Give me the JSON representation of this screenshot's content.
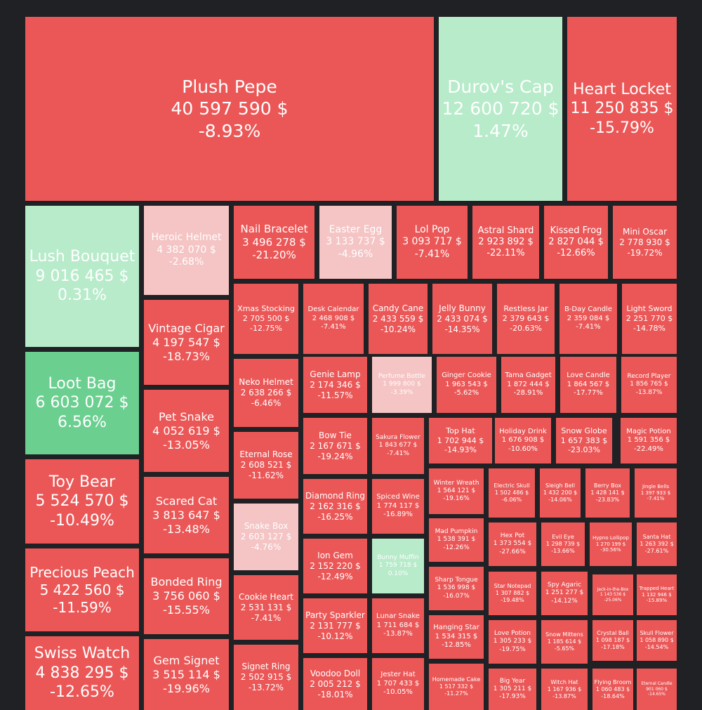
{
  "chart_data": {
    "type": "treemap",
    "colors": {
      "background": "#1f2124",
      "strong_negative": "#eb5757",
      "mild_negative": "#f5c4c4",
      "mild_positive": "#b7ebca",
      "strong_positive": "#6acf8f",
      "text_on_red": "#ffffff"
    },
    "items": [
      {
        "name": "Plush Pepe",
        "value": "40 597 590 $",
        "change": "-8.93%",
        "change_num": -8.93
      },
      {
        "name": "Durov's Cap",
        "value": "12 600 720 $",
        "change": "1.47%",
        "change_num": 1.47
      },
      {
        "name": "Heart Locket",
        "value": "11 250 835 $",
        "change": "-15.79%",
        "change_num": -15.79
      },
      {
        "name": "Lush Bouquet",
        "value": "9 016 465 $",
        "change": "0.31%",
        "change_num": 0.31
      },
      {
        "name": "Heroic Helmet",
        "value": "4 382 070 $",
        "change": "-2.68%",
        "change_num": -2.68
      },
      {
        "name": "Nail Bracelet",
        "value": "3 496 278 $",
        "change": "-21.20%",
        "change_num": -21.2
      },
      {
        "name": "Easter Egg",
        "value": "3 133 737 $",
        "change": "-4.96%",
        "change_num": -4.96
      },
      {
        "name": "Lol Pop",
        "value": "3 093 717 $",
        "change": "-7.41%",
        "change_num": -7.41
      },
      {
        "name": "Astral Shard",
        "value": "2 923 892 $",
        "change": "-22.11%",
        "change_num": -22.11
      },
      {
        "name": "Kissed Frog",
        "value": "2 827 044 $",
        "change": "-12.66%",
        "change_num": -12.66
      },
      {
        "name": "Mini Oscar",
        "value": "2 778 930 $",
        "change": "-19.72%",
        "change_num": -19.72
      },
      {
        "name": "Loot Bag",
        "value": "6 603 072 $",
        "change": "6.56%",
        "change_num": 6.56
      },
      {
        "name": "Vintage Cigar",
        "value": "4 197 547 $",
        "change": "-18.73%",
        "change_num": -18.73
      },
      {
        "name": "Xmas Stocking",
        "value": "2 705 500 $",
        "change": "-12.75%",
        "change_num": -12.75
      },
      {
        "name": "Desk Calendar",
        "value": "2 468 908 $",
        "change": "-7.41%",
        "change_num": -7.41
      },
      {
        "name": "Candy Cane",
        "value": "2 433 559 $",
        "change": "-10.24%",
        "change_num": -10.24
      },
      {
        "name": "Jelly Bunny",
        "value": "2 433 074 $",
        "change": "-14.35%",
        "change_num": -14.35
      },
      {
        "name": "Restless Jar",
        "value": "2 379 643 $",
        "change": "-20.63%",
        "change_num": -20.63
      },
      {
        "name": "B-Day Candle",
        "value": "2 359 084 $",
        "change": "-7.41%",
        "change_num": -7.41
      },
      {
        "name": "Light Sword",
        "value": "2 251 770 $",
        "change": "-14.78%",
        "change_num": -14.78
      },
      {
        "name": "Neko Helmet",
        "value": "2 638 266 $",
        "change": "-6.46%",
        "change_num": -6.46
      },
      {
        "name": "Genie Lamp",
        "value": "2 174 346 $",
        "change": "-11.57%",
        "change_num": -11.57
      },
      {
        "name": "Perfume Bottle",
        "value": "1 999 800 $",
        "change": "-3.39%",
        "change_num": -3.39
      },
      {
        "name": "Ginger Cookie",
        "value": "1 963 543 $",
        "change": "-5.62%",
        "change_num": -5.62
      },
      {
        "name": "Tama Gadget",
        "value": "1 872 444 $",
        "change": "-28.91%",
        "change_num": -28.91
      },
      {
        "name": "Love Candle",
        "value": "1 864 567 $",
        "change": "-17.77%",
        "change_num": -17.77
      },
      {
        "name": "Record Player",
        "value": "1 856 765 $",
        "change": "-13.87%",
        "change_num": -13.87
      },
      {
        "name": "Pet Snake",
        "value": "4 052 619 $",
        "change": "-13.05%",
        "change_num": -13.05
      },
      {
        "name": "Eternal Rose",
        "value": "2 608 521 $",
        "change": "-11.62%",
        "change_num": -11.62
      },
      {
        "name": "Bow Tie",
        "value": "2 167 671 $",
        "change": "-19.24%",
        "change_num": -19.24
      },
      {
        "name": "Sakura Flower",
        "value": "1 843 677 $",
        "change": "-7.41%",
        "change_num": -7.41
      },
      {
        "name": "Top Hat",
        "value": "1 702 944 $",
        "change": "-14.93%",
        "change_num": -14.93
      },
      {
        "name": "Holiday Drink",
        "value": "1 676 908 $",
        "change": "-10.60%",
        "change_num": -10.6
      },
      {
        "name": "Snow Globe",
        "value": "1 657 383 $",
        "change": "-23.03%",
        "change_num": -23.03
      },
      {
        "name": "Magic Potion",
        "value": "1 591 356 $",
        "change": "-22.49%",
        "change_num": -22.49
      },
      {
        "name": "Toy Bear",
        "value": "5 524 570 $",
        "change": "-10.49%",
        "change_num": -10.49
      },
      {
        "name": "Winter Wreath",
        "value": "1 564 121 $",
        "change": "-19.16%",
        "change_num": -19.16
      },
      {
        "name": "Electric Skull",
        "value": "1 502 486 $",
        "change": "-6.06%",
        "change_num": -6.06
      },
      {
        "name": "Sleigh Bell",
        "value": "1 432 200 $",
        "change": "-14.06%",
        "change_num": -14.06
      },
      {
        "name": "Berry Box",
        "value": "1 428 141 $",
        "change": "-23.83%",
        "change_num": -23.83
      },
      {
        "name": "Jingle Bells",
        "value": "1 397 933 $",
        "change": "-7.41%",
        "change_num": -7.41
      },
      {
        "name": "Scared Cat",
        "value": "3 813 647 $",
        "change": "-13.48%",
        "change_num": -13.48
      },
      {
        "name": "Diamond Ring",
        "value": "2 162 316 $",
        "change": "-16.25%",
        "change_num": -16.25
      },
      {
        "name": "Spiced Wine",
        "value": "1 774 117 $",
        "change": "-16.89%",
        "change_num": -16.89
      },
      {
        "name": "Snake Box",
        "value": "2 603 127 $",
        "change": "-4.76%",
        "change_num": -4.76
      },
      {
        "name": "Mad Pumpkin",
        "value": "1 538 391 $",
        "change": "-12.26%",
        "change_num": -12.26
      },
      {
        "name": "Hex Pot",
        "value": "1 373 554 $",
        "change": "-27.66%",
        "change_num": -27.66
      },
      {
        "name": "Evil Eye",
        "value": "1 298 739 $",
        "change": "-13.66%",
        "change_num": -13.66
      },
      {
        "name": "Hypno Lollipop",
        "value": "1 270 199 $",
        "change": "-30.56%",
        "change_num": -30.56
      },
      {
        "name": "Santa Hat",
        "value": "1 263 392 $",
        "change": "-27.61%",
        "change_num": -27.61
      },
      {
        "name": "Precious Peach",
        "value": "5 422 560 $",
        "change": "-11.59%",
        "change_num": -11.59
      },
      {
        "name": "Ion Gem",
        "value": "2 152 220 $",
        "change": "-12.49%",
        "change_num": -12.49
      },
      {
        "name": "Bunny Muffin",
        "value": "1 759 718 $",
        "change": "0.10%",
        "change_num": 0.1
      },
      {
        "name": "Sharp Tongue",
        "value": "1 536 998 $",
        "change": "-16.07%",
        "change_num": -16.07
      },
      {
        "name": "Star Notepad",
        "value": "1 307 882 $",
        "change": "-19.48%",
        "change_num": -19.48
      },
      {
        "name": "Spy Agaric",
        "value": "1 251 277 $",
        "change": "-14.12%",
        "change_num": -14.12
      },
      {
        "name": "Jack-in-the-Box",
        "value": "1 143 536 $",
        "change": "-25.06%",
        "change_num": -25.06
      },
      {
        "name": "Trapped Heart",
        "value": "1 132 946 $",
        "change": "-15.89%",
        "change_num": -15.89
      },
      {
        "name": "Bonded Ring",
        "value": "3 756 060 $",
        "change": "-15.55%",
        "change_num": -15.55
      },
      {
        "name": "Cookie Heart",
        "value": "2 531 131 $",
        "change": "-7.41%",
        "change_num": -7.41
      },
      {
        "name": "Party Sparkler",
        "value": "2 131 777 $",
        "change": "-10.12%",
        "change_num": -10.12
      },
      {
        "name": "Lunar Snake",
        "value": "1 711 684 $",
        "change": "-13.87%",
        "change_num": -13.87
      },
      {
        "name": "Hanging Star",
        "value": "1 534 315 $",
        "change": "-12.85%",
        "change_num": -12.85
      },
      {
        "name": "Love Potion",
        "value": "1 305 233 $",
        "change": "-19.75%",
        "change_num": -19.75
      },
      {
        "name": "Snow Mittens",
        "value": "1 185 614 $",
        "change": "-5.65%",
        "change_num": -5.65
      },
      {
        "name": "Crystal Ball",
        "value": "1 098 187 $",
        "change": "-17.18%",
        "change_num": -17.18
      },
      {
        "name": "Skull Flower",
        "value": "1 058 890 $",
        "change": "-14.54%",
        "change_num": -14.54
      },
      {
        "name": "Swiss Watch",
        "value": "4 838 295 $",
        "change": "-12.65%",
        "change_num": -12.65
      },
      {
        "name": "Gem Signet",
        "value": "3 515 114 $",
        "change": "-19.96%",
        "change_num": -19.96
      },
      {
        "name": "Signet Ring",
        "value": "2 502 915 $",
        "change": "-13.72%",
        "change_num": -13.72
      },
      {
        "name": "Voodoo Doll",
        "value": "2 005 212 $",
        "change": "-18.01%",
        "change_num": -18.01
      },
      {
        "name": "Jester Hat",
        "value": "1 707 433 $",
        "change": "-10.05%",
        "change_num": -10.05
      },
      {
        "name": "Homemade Cake",
        "value": "1 517 332 $",
        "change": "-11.27%",
        "change_num": -11.27
      },
      {
        "name": "Big Year",
        "value": "1 305 211 $",
        "change": "-17.93%",
        "change_num": -17.93
      },
      {
        "name": "Witch Hat",
        "value": "1 167 936 $",
        "change": "-13.87%",
        "change_num": -13.87
      },
      {
        "name": "Flying Broom",
        "value": "1 060 483 $",
        "change": "-18.64%",
        "change_num": -18.64
      },
      {
        "name": "Eternal Candle",
        "value": "901 060 $",
        "change": "-14.65%",
        "change_num": -14.65
      }
    ]
  }
}
